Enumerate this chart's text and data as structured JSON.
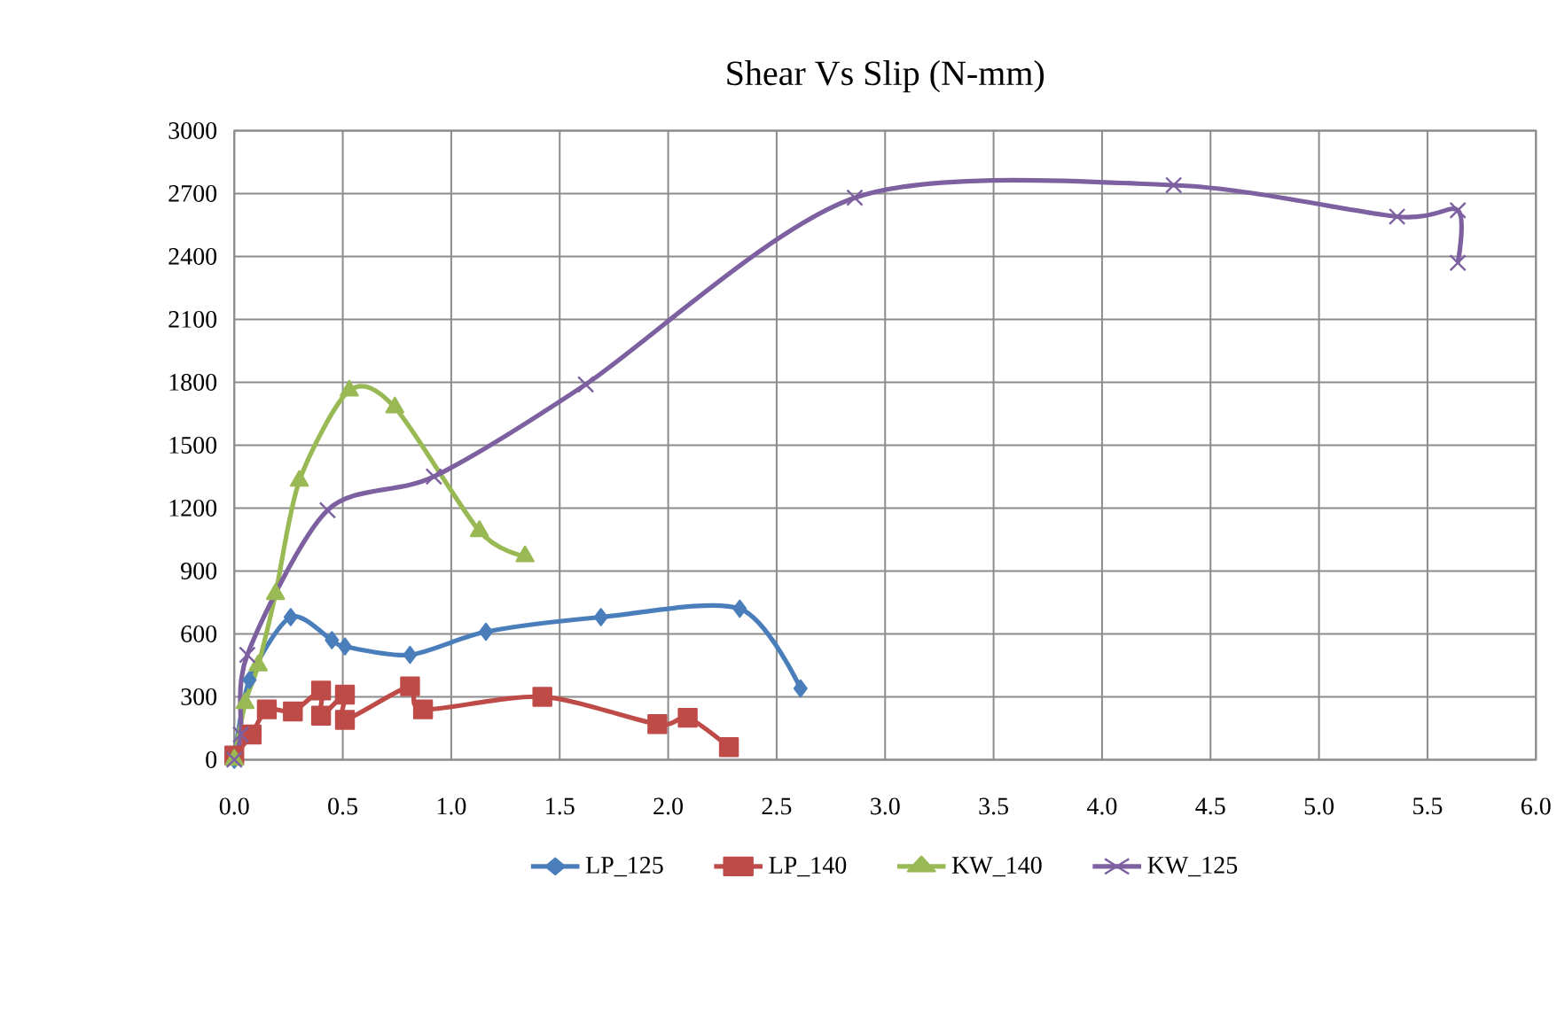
{
  "chart_data": {
    "type": "line",
    "title": "Shear Vs Slip (N-mm)",
    "xlim": [
      0,
      6
    ],
    "xticks": [
      {
        "value": 0,
        "label": "0.0"
      },
      {
        "value": 0.5,
        "label": "0.5"
      },
      {
        "value": 1,
        "label": "1.0"
      },
      {
        "value": 1.5,
        "label": "1.5"
      },
      {
        "value": 2,
        "label": "2.0"
      },
      {
        "value": 2.5,
        "label": "2.5"
      },
      {
        "value": 3,
        "label": "3.0"
      },
      {
        "value": 3.5,
        "label": "3.5"
      },
      {
        "value": 4,
        "label": "4.0"
      },
      {
        "value": 4.5,
        "label": "4.5"
      },
      {
        "value": 5,
        "label": "5.0"
      },
      {
        "value": 5.5,
        "label": "5.5"
      },
      {
        "value": 6,
        "label": "6.0"
      }
    ],
    "ylim": [
      0,
      3000
    ],
    "yticks": [
      0,
      300,
      600,
      900,
      1200,
      1500,
      1800,
      2100,
      2400,
      2700,
      3000
    ],
    "grid": true,
    "legend": "bottom",
    "series": [
      {
        "name": "LP_125",
        "color": "#4a7ebb",
        "marker": "diamond",
        "x": [
          0,
          0.07,
          0.26,
          0.45,
          0.51,
          0.81,
          1.16,
          1.69,
          2.33,
          2.61
        ],
        "values": [
          0,
          380,
          680,
          570,
          540,
          500,
          610,
          680,
          720,
          340
        ]
      },
      {
        "name": "LP_140",
        "color": "#be4b48",
        "marker": "square",
        "x": [
          0,
          0.08,
          0.15,
          0.27,
          0.4,
          0.4,
          0.51,
          0.51,
          0.81,
          0.87,
          1.42,
          1.95,
          2.09,
          2.28
        ],
        "values": [
          20,
          120,
          240,
          230,
          330,
          210,
          310,
          190,
          350,
          240,
          300,
          170,
          200,
          60
        ]
      },
      {
        "name": "KW_140",
        "color": "#98b954",
        "marker": "triangle",
        "x": [
          0,
          0.05,
          0.11,
          0.19,
          0.3,
          0.53,
          0.74,
          1.13,
          1.34
        ],
        "values": [
          0,
          270,
          450,
          790,
          1330,
          1760,
          1680,
          1090,
          970
        ]
      },
      {
        "name": "KW_125",
        "color": "#7d60a0",
        "marker": "cross",
        "x": [
          0,
          0.03,
          0.06,
          0.43,
          0.92,
          1.62,
          2.86,
          4.33,
          5.36,
          5.64,
          5.64
        ],
        "values": [
          0,
          120,
          500,
          1190,
          1350,
          1790,
          2680,
          2740,
          2590,
          2620,
          2370
        ]
      }
    ]
  }
}
